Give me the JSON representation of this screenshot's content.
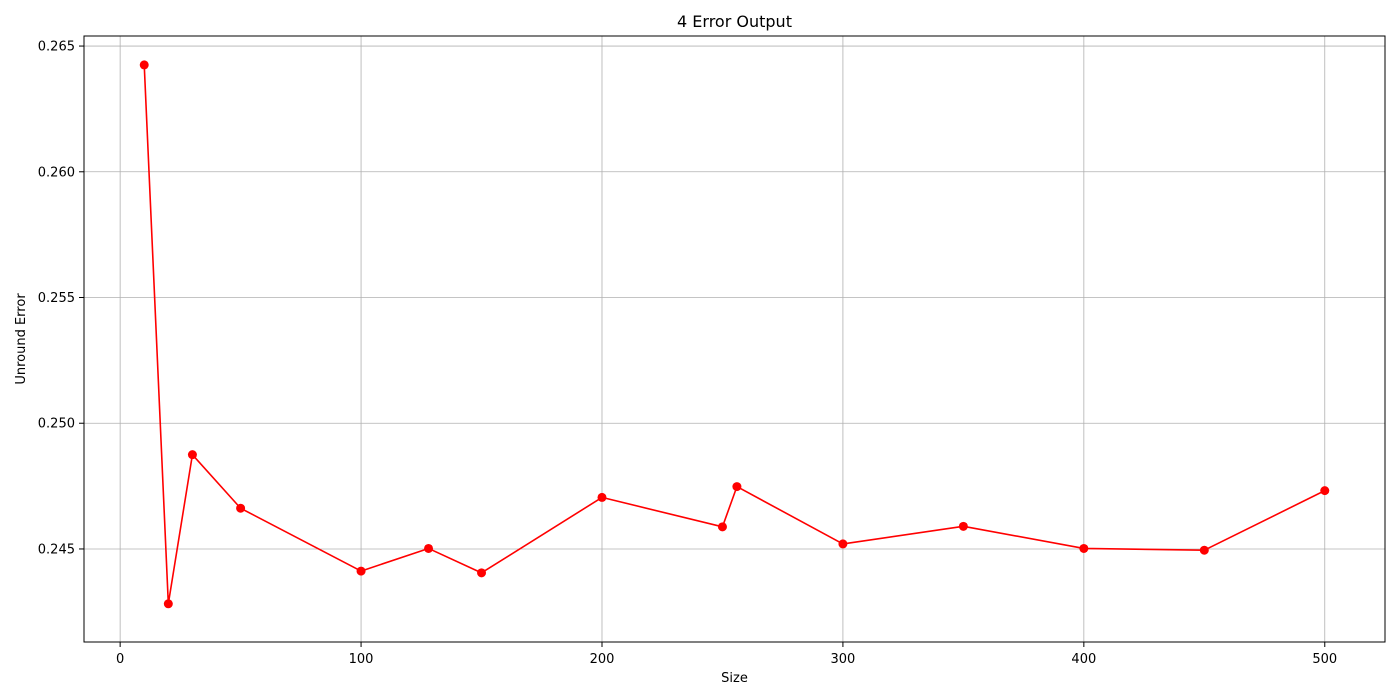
{
  "chart_data": {
    "type": "line",
    "title": "4 Error Output",
    "xlabel": "Size",
    "ylabel": "Unround Error",
    "xlim": [
      -15,
      525
    ],
    "ylim": [
      0.2413,
      0.2654
    ],
    "x_ticks": [
      0,
      100,
      200,
      300,
      400,
      500
    ],
    "x_tick_labels": [
      "0",
      "100",
      "200",
      "300",
      "400",
      "500"
    ],
    "y_ticks": [
      0.245,
      0.25,
      0.255,
      0.26,
      0.265
    ],
    "y_tick_labels": [
      "0.245",
      "0.250",
      "0.255",
      "0.260",
      "0.265"
    ],
    "grid": true,
    "series": [
      {
        "color": "#ff0000",
        "marker": "circle",
        "x": [
          10,
          20,
          30,
          50,
          100,
          128,
          150,
          200,
          250,
          256,
          300,
          350,
          400,
          450,
          500
        ],
        "y": [
          0.26425,
          0.24282,
          0.24875,
          0.24662,
          0.24412,
          0.24502,
          0.24405,
          0.24705,
          0.24588,
          0.24748,
          0.2452,
          0.2459,
          0.24502,
          0.24495,
          0.24732
        ]
      }
    ]
  }
}
